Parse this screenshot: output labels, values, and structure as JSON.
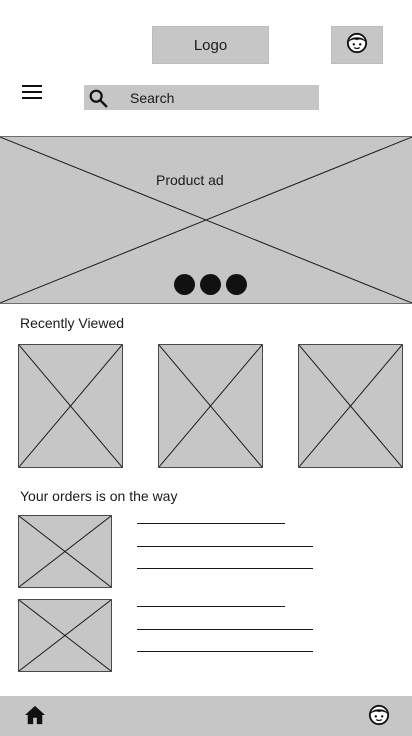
{
  "header": {
    "logo_text": "Logo",
    "profile_icon": "face-icon",
    "menu_icon": "hamburger-menu-icon"
  },
  "search": {
    "icon": "search-icon",
    "placeholder": "Search"
  },
  "banner": {
    "title": "Product ad",
    "carousel_dots": 3
  },
  "recently_viewed": {
    "title": "Recently Viewed",
    "item_count": 3
  },
  "orders": {
    "title": "Your orders is on the way",
    "item_count": 2
  },
  "bottom_nav": {
    "home_icon": "home-icon",
    "profile_icon": "face-icon"
  },
  "colors": {
    "placeholder_gray": "#c6c6c6",
    "line_dark": "#1a1a1a",
    "dot_dark": "#111111"
  }
}
